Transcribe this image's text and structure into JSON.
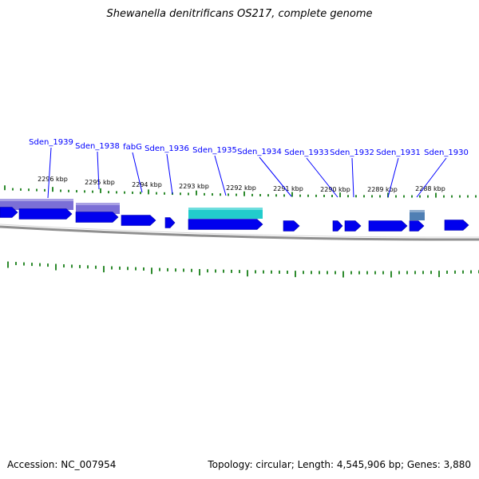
{
  "title": "Shewanella denitrificans OS217, complete genome",
  "footer": {
    "accession": "Accession: NC_007954",
    "summary": "Topology: circular; Length: 4,545,906 bp; Genes: 3,880"
  },
  "colors": {
    "gene_label": "#0000ff",
    "cds_arrow": "#0000ee",
    "tick": "#2e8b2e",
    "backbone": "#909090",
    "cog_purple": "#7b6fd6",
    "cog_cyan": "#22cccc",
    "cog_steel": "#4f7fb4"
  },
  "gene_labels": [
    "Sden_1939",
    "Sden_1938",
    "fabG",
    "Sden_1936",
    "Sden_1935",
    "Sden_1934",
    "Sden_1933",
    "Sden_1932",
    "Sden_1931",
    "Sden_1930"
  ],
  "kbp_labels": [
    "2296 kbp",
    "2295 kbp",
    "2294 kbp",
    "2293 kbp",
    "2292 kbp",
    "2291 kbp",
    "2290 kbp",
    "2289 kbp",
    "2288 kbp"
  ]
}
